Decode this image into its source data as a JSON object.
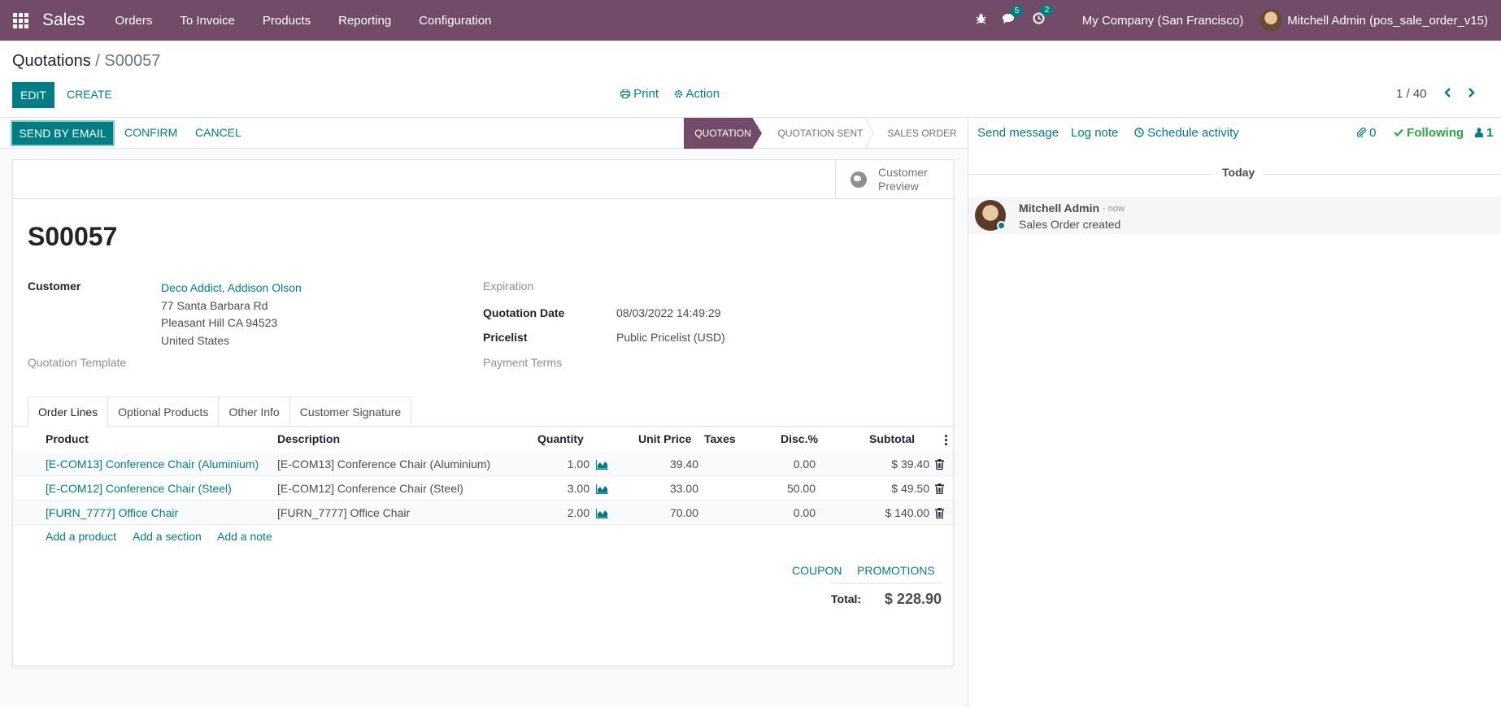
{
  "navbar": {
    "brand": "Sales",
    "menu": [
      "Orders",
      "To Invoice",
      "Products",
      "Reporting",
      "Configuration"
    ],
    "messages_badge": "5",
    "activities_badge": "2",
    "company": "My Company (San Francisco)",
    "user": "Mitchell Admin (pos_sale_order_v15)"
  },
  "control_panel": {
    "breadcrumb_parent": "Quotations",
    "breadcrumb_sep": "/",
    "breadcrumb_current": "S00057",
    "edit_label": "EDIT",
    "create_label": "CREATE",
    "print_label": "Print",
    "action_label": "Action",
    "pager": "1 / 40"
  },
  "statusbar": {
    "send_email": "SEND BY EMAIL",
    "confirm": "CONFIRM",
    "cancel": "CANCEL",
    "stages": [
      "QUOTATION",
      "QUOTATION SENT",
      "SALES ORDER"
    ],
    "active_stage": "QUOTATION"
  },
  "form": {
    "preview_line1": "Customer",
    "preview_line2": "Preview",
    "name": "S00057",
    "customer_label": "Customer",
    "customer_name": "Deco Addict, Addison Olson",
    "address_line1": "77 Santa Barbara Rd",
    "address_line2": "Pleasant Hill CA 94523",
    "address_line3": "United States",
    "template_label": "Quotation Template",
    "expiration_label": "Expiration",
    "date_label": "Quotation Date",
    "date_value": "08/03/2022 14:49:29",
    "pricelist_label": "Pricelist",
    "pricelist_value": "Public Pricelist (USD)",
    "payment_terms_label": "Payment Terms"
  },
  "tabs": [
    "Order Lines",
    "Optional Products",
    "Other Info",
    "Customer Signature"
  ],
  "order_lines": {
    "headers": {
      "product": "Product",
      "description": "Description",
      "quantity": "Quantity",
      "unit_price": "Unit Price",
      "taxes": "Taxes",
      "discount": "Disc.%",
      "subtotal": "Subtotal"
    },
    "rows": [
      {
        "product": "[E-COM13] Conference Chair (Aluminium)",
        "description": "[E-COM13] Conference Chair (Aluminium)",
        "quantity": "1.00",
        "unit_price": "39.40",
        "discount": "0.00",
        "subtotal": "$ 39.40"
      },
      {
        "product": "[E-COM12] Conference Chair (Steel)",
        "description": "[E-COM12] Conference Chair (Steel)",
        "quantity": "3.00",
        "unit_price": "33.00",
        "discount": "50.00",
        "subtotal": "$ 49.50"
      },
      {
        "product": "[FURN_7777] Office Chair",
        "description": "[FURN_7777] Office Chair",
        "quantity": "2.00",
        "unit_price": "70.00",
        "discount": "0.00",
        "subtotal": "$ 140.00"
      }
    ],
    "add_product": "Add a product",
    "add_section": "Add a section",
    "add_note": "Add a note"
  },
  "totals": {
    "coupon": "COUPON",
    "promotions": "PROMOTIONS",
    "total_label": "Total:",
    "total_value": "$ 228.90"
  },
  "chatter": {
    "send_message": "Send message",
    "log_note": "Log note",
    "schedule_activity": "Schedule activity",
    "attachments": "0",
    "following": "Following",
    "followers": "1",
    "today": "Today",
    "author": "Mitchell Admin",
    "time": "- now",
    "body": "Sales Order created"
  },
  "colors": {
    "brand": "#714b67",
    "primary": "#017e84",
    "success": "#28a745"
  }
}
